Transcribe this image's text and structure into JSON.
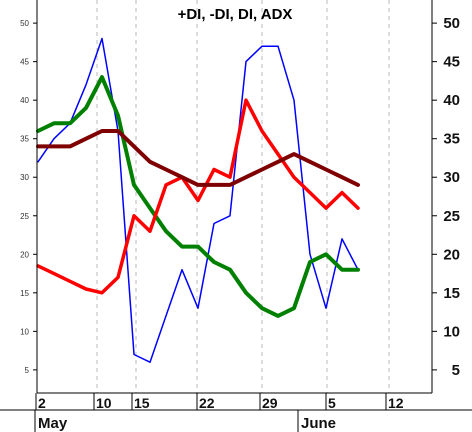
{
  "chart_data": {
    "type": "line",
    "title": "+DI, -DI, DI, ADX",
    "xlabel": "",
    "ylabel": "",
    "ylim": [
      2,
      53
    ],
    "x_tick_labels": [
      "2",
      "10",
      "15",
      "22",
      "29",
      "5",
      "12"
    ],
    "month_labels": [
      "May",
      "June"
    ],
    "y_ticks_left": [
      5,
      10,
      15,
      20,
      25,
      30,
      35,
      40,
      45,
      50
    ],
    "y_ticks_right": [
      5,
      10,
      15,
      20,
      25,
      30,
      35,
      40,
      45,
      50
    ],
    "grid": "vertical dashed",
    "x": [
      0,
      2,
      4,
      6,
      8,
      10,
      12,
      14,
      16,
      18,
      20,
      22,
      24,
      26,
      28,
      30,
      32,
      34,
      36,
      38,
      40,
      42,
      44,
      46,
      48
    ],
    "series": [
      {
        "color": "#0000ff",
        "width": 1.5,
        "values": [
          32,
          35,
          37,
          42,
          48,
          36,
          7,
          6,
          12,
          18,
          13,
          24,
          25,
          45,
          47,
          47,
          40,
          20,
          13,
          22,
          18,
          null,
          null,
          null,
          null
        ]
      },
      {
        "color": "#008000",
        "width": 4,
        "values": [
          36,
          37,
          37,
          39,
          43,
          38,
          29,
          26,
          23,
          21,
          21,
          19,
          18,
          15,
          13,
          12,
          13,
          19,
          20,
          18,
          18,
          null,
          null,
          null,
          null
        ]
      },
      {
        "color": "#ff0000",
        "width": 3.5,
        "values": [
          18.5,
          17.5,
          16.5,
          15.5,
          15,
          17,
          25,
          23,
          29,
          30,
          27,
          31,
          30,
          40,
          36,
          33,
          30,
          28,
          26,
          28,
          26,
          null,
          null,
          null,
          null
        ]
      },
      {
        "color": "#7f0000",
        "width": 4,
        "values": [
          34,
          34,
          34,
          35,
          36,
          36,
          34,
          32,
          31,
          30,
          29,
          29,
          29,
          30,
          31,
          32,
          33,
          32,
          31,
          30,
          29,
          null,
          null,
          null,
          null
        ]
      }
    ]
  }
}
